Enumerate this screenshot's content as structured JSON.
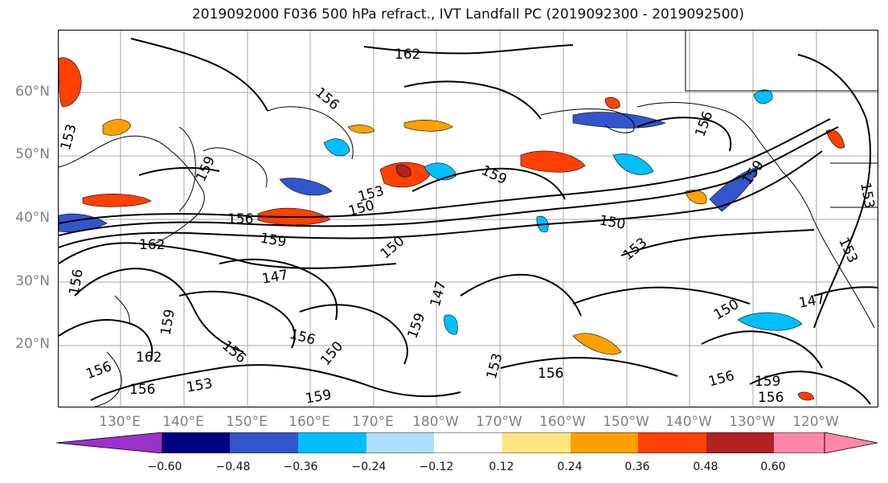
{
  "title": "2019092000 F036 500 hPa refract., IVT Landfall PC (2019092300 - 2019092500)",
  "lat_labels": [
    "60°N",
    "50°N",
    "40°N",
    "30°N",
    "20°N"
  ],
  "lon_labels": [
    "130°E",
    "140°E",
    "150°E",
    "160°E",
    "170°E",
    "180°W",
    "170°W",
    "160°W",
    "150°W",
    "140°W",
    "130°W",
    "120°W"
  ],
  "contour_labels": [
    "162",
    "153",
    "156",
    "159",
    "153",
    "150",
    "156",
    "159",
    "150",
    "159",
    "150",
    "153",
    "147",
    "147",
    "147",
    "150",
    "153",
    "156",
    "159",
    "162",
    "156",
    "159",
    "156",
    "153",
    "156",
    "159",
    "156",
    "150",
    "156",
    "159",
    "153",
    "159",
    "156",
    "153",
    "156",
    "162",
    "156"
  ],
  "colorbar": {
    "ticks": [
      "−0.60",
      "−0.48",
      "−0.36",
      "−0.24",
      "−0.12",
      "0.12",
      "0.24",
      "0.36",
      "0.48",
      "0.60"
    ],
    "colors": [
      "#9933cc",
      "#000080",
      "#3355cc",
      "#00bfff",
      "#b0e0ff",
      "#ffffff",
      "#ffe680",
      "#ffa000",
      "#ff4000",
      "#b22222",
      "#ff88aa",
      "#ff88aa"
    ]
  }
}
